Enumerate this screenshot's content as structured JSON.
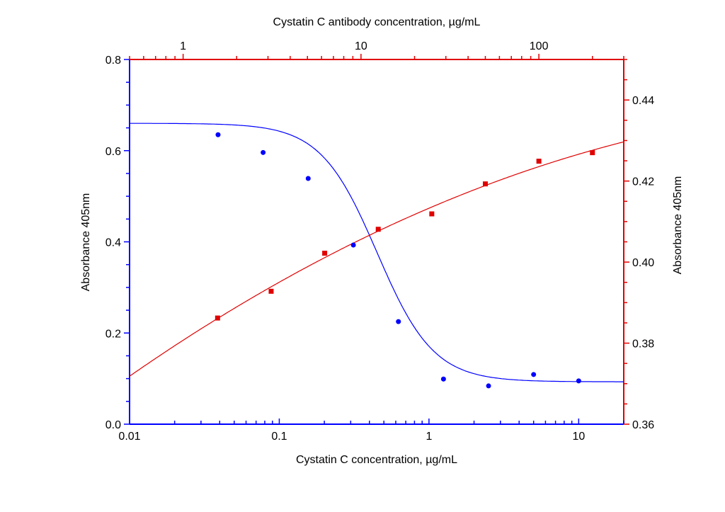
{
  "chart_data": {
    "type": "scatter",
    "xlabel": "Cystatin C concentration, µg/mL",
    "x2label": "Cystatin C antibody concentration, µg/mL",
    "ylabel": "Absorbance 405nm",
    "y2label": "Absorbance 405nm",
    "xscale": "log",
    "x2scale": "log",
    "xlim": [
      0.01,
      20
    ],
    "x2lim": [
      0.5,
      300
    ],
    "ylim": [
      0,
      0.8
    ],
    "y2lim": [
      0.36,
      0.45
    ],
    "xticks": [
      "0.01",
      "0.1",
      "1",
      "10"
    ],
    "x2ticks": [
      "1",
      "10",
      "100"
    ],
    "yticks": [
      "0.0",
      "0.2",
      "0.4",
      "0.6",
      "0.8"
    ],
    "y2ticks": [
      "0.36",
      "0.38",
      "0.40",
      "0.42",
      "0.44"
    ],
    "grid": false,
    "colors": {
      "left_axis": "#0000ff",
      "right_axis": "#e00000"
    },
    "series": [
      {
        "axis": "bottom-left",
        "color": "#0000ff",
        "marker": "circle",
        "x": [
          0.039,
          0.078,
          0.156,
          0.3125,
          0.625,
          1.25,
          2.5,
          5,
          10
        ],
        "y": [
          0.635,
          0.596,
          0.539,
          0.393,
          0.225,
          0.099,
          0.084,
          0.109,
          0.095
        ],
        "fit": {
          "model": "4PL",
          "top": 0.66,
          "bottom": 0.093,
          "ec50": 0.45,
          "hill": 2.3
        }
      },
      {
        "axis": "top-right",
        "color": "#e00000",
        "marker": "square",
        "x": [
          1.5625,
          3.125,
          6.25,
          12.5,
          25,
          50,
          100,
          200
        ],
        "y": [
          0.3862,
          0.3928,
          0.4022,
          0.4081,
          0.4119,
          0.4193,
          0.4249,
          0.427
        ],
        "fit": {
          "model": "smooth",
          "start": 0.372,
          "end": 0.4295
        }
      }
    ]
  }
}
